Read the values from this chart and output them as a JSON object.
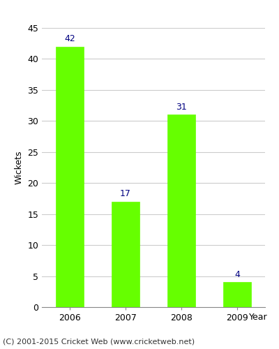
{
  "categories": [
    "2006",
    "2007",
    "2008",
    "2009"
  ],
  "values": [
    42,
    17,
    31,
    4
  ],
  "bar_color": "#66ff00",
  "bar_edgecolor": "#66ff00",
  "label_color": "#000080",
  "xlabel": "Year",
  "ylabel": "Wickets",
  "ylim": [
    0,
    45
  ],
  "yticks": [
    0,
    5,
    10,
    15,
    20,
    25,
    30,
    35,
    40,
    45
  ],
  "label_fontsize": 9,
  "axis_label_fontsize": 9,
  "tick_fontsize": 9,
  "footer": "(C) 2001-2015 Cricket Web (www.cricketweb.net)",
  "footer_fontsize": 8,
  "background_color": "#ffffff",
  "plot_bg_color": "#ffffff",
  "grid_color": "#cccccc",
  "spine_color": "#888888"
}
